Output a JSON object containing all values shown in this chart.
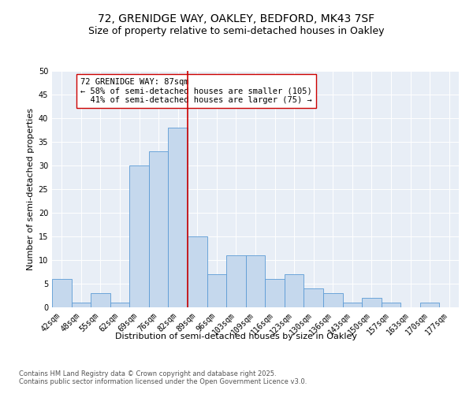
{
  "title1": "72, GRENIDGE WAY, OAKLEY, BEDFORD, MK43 7SF",
  "title2": "Size of property relative to semi-detached houses in Oakley",
  "xlabel": "Distribution of semi-detached houses by size in Oakley",
  "ylabel": "Number of semi-detached properties",
  "bin_labels": [
    "42sqm",
    "48sqm",
    "55sqm",
    "62sqm",
    "69sqm",
    "76sqm",
    "82sqm",
    "89sqm",
    "96sqm",
    "103sqm",
    "109sqm",
    "116sqm",
    "123sqm",
    "130sqm",
    "136sqm",
    "143sqm",
    "150sqm",
    "157sqm",
    "163sqm",
    "170sqm",
    "177sqm"
  ],
  "bar_heights": [
    6,
    1,
    3,
    1,
    30,
    33,
    38,
    15,
    7,
    11,
    11,
    6,
    7,
    4,
    3,
    1,
    2,
    1,
    0,
    1,
    0
  ],
  "bar_color": "#c5d8ed",
  "bar_edge_color": "#5b9bd5",
  "vline_color": "#cc0000",
  "annotation_text": "72 GRENIDGE WAY: 87sqm\n← 58% of semi-detached houses are smaller (105)\n  41% of semi-detached houses are larger (75) →",
  "annotation_box_color": "#ffffff",
  "annotation_box_edge": "#cc0000",
  "ylim": [
    0,
    50
  ],
  "yticks": [
    0,
    5,
    10,
    15,
    20,
    25,
    30,
    35,
    40,
    45,
    50
  ],
  "background_color": "#e8eef6",
  "footer_text": "Contains HM Land Registry data © Crown copyright and database right 2025.\nContains public sector information licensed under the Open Government Licence v3.0.",
  "title_fontsize": 10,
  "subtitle_fontsize": 9,
  "axis_label_fontsize": 8,
  "tick_fontsize": 7,
  "annotation_fontsize": 7.5,
  "footer_fontsize": 6
}
